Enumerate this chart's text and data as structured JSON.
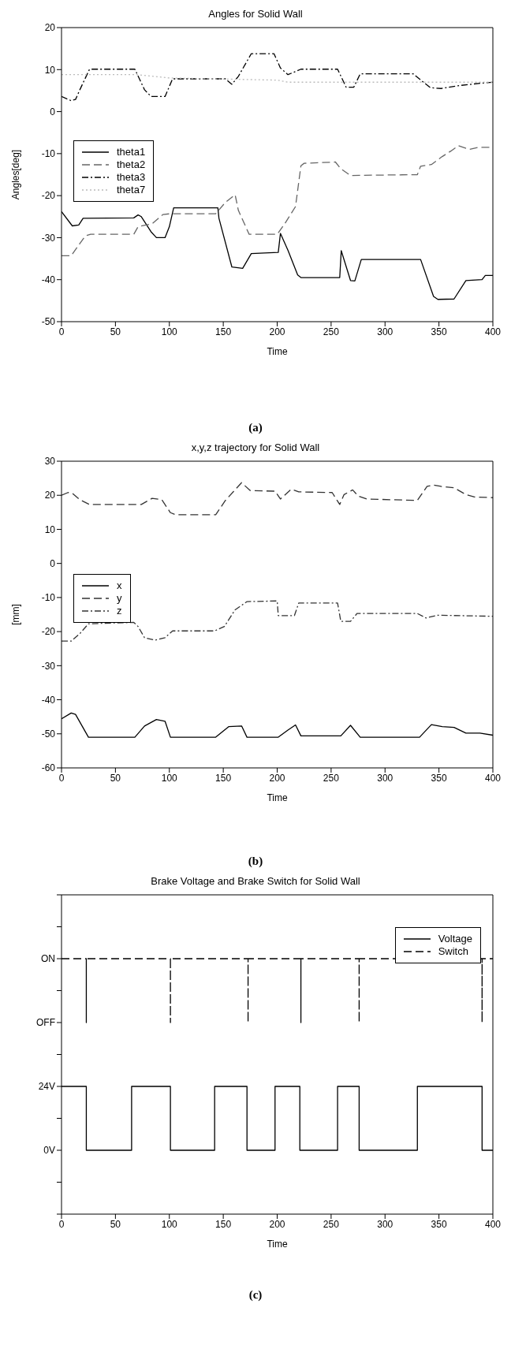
{
  "chart_data": [
    {
      "type": "line",
      "title": "Angles for Solid Wall",
      "xlabel": "Time",
      "ylabel": "Angles[deg]",
      "annotations": [
        "(a)"
      ],
      "xlim": [
        0,
        400
      ],
      "xticks": [
        0,
        50,
        100,
        150,
        200,
        250,
        300,
        350,
        400
      ],
      "ylim": [
        -50,
        20
      ],
      "yticks": [
        -50,
        -40,
        -30,
        -20,
        -10,
        0,
        10,
        20
      ],
      "legend": "left",
      "series": [
        {
          "name": "theta1",
          "color": "#000000",
          "line_style": "solid",
          "x": [
            0,
            10,
            16,
            20,
            67,
            71,
            74,
            83,
            88,
            96,
            100,
            104,
            145,
            146,
            158,
            168,
            176,
            201,
            203,
            210,
            219,
            222,
            258,
            259.4,
            268,
            272,
            278,
            333,
            345,
            349,
            364,
            375,
            390,
            393,
            400
          ],
          "values": [
            -23.8,
            -27.2,
            -27,
            -25.4,
            -25.3,
            -24.6,
            -25,
            -28.6,
            -30,
            -30,
            -27.4,
            -22.9,
            -22.9,
            -25.4,
            -37,
            -37.3,
            -33.8,
            -33.5,
            -29,
            -33,
            -38.9,
            -39.5,
            -39.5,
            -33.1,
            -40.2,
            -40.3,
            -35.2,
            -35.2,
            -44,
            -44.7,
            -44.6,
            -40.2,
            -40,
            -39,
            -39
          ]
        },
        {
          "name": "theta2",
          "color": "#666666",
          "line_style": "dashed",
          "x": [
            0,
            9,
            22,
            27,
            67,
            71,
            84,
            94,
            101,
            143,
            152,
            161,
            164,
            174,
            200,
            207,
            217,
            222,
            225,
            254,
            259,
            268,
            330,
            333,
            343,
            353,
            361,
            368,
            378,
            387,
            400
          ],
          "values": [
            -34.3,
            -34.3,
            -29.6,
            -29.2,
            -29.2,
            -27.4,
            -26.7,
            -24.5,
            -24.3,
            -24.3,
            -21.6,
            -19.8,
            -23.5,
            -29.2,
            -29.2,
            -26.7,
            -22.6,
            -12.9,
            -12.3,
            -12,
            -13.6,
            -15.2,
            -15,
            -13,
            -12.6,
            -10.7,
            -9.4,
            -8.1,
            -9,
            -8.5,
            -8.5
          ]
        },
        {
          "name": "theta3",
          "color": "#000000",
          "line_style": "dashdot",
          "x": [
            0,
            9,
            13,
            17,
            26,
            68,
            77,
            83,
            96,
            103,
            152,
            158,
            164,
            176,
            197,
            203,
            210,
            222,
            256,
            264,
            271,
            277,
            326,
            342,
            352,
            369,
            390,
            400
          ],
          "values": [
            3.6,
            2.6,
            2.9,
            5.2,
            10.1,
            10.1,
            5.2,
            3.6,
            3.6,
            7.8,
            7.8,
            6.5,
            8.4,
            13.8,
            13.8,
            10.4,
            8.8,
            10.1,
            10.1,
            5.8,
            5.8,
            9,
            9,
            5.7,
            5.5,
            6.2,
            6.8,
            7
          ]
        },
        {
          "name": "theta7",
          "color": "#bbbbbb",
          "line_style": "dotted",
          "x": [
            0,
            70,
            100,
            200,
            210,
            400
          ],
          "values": [
            8.8,
            8.8,
            8,
            7.5,
            7,
            7
          ]
        }
      ]
    },
    {
      "type": "line",
      "title": "x,y,z trajectory for Solid Wall",
      "xlabel": "Time",
      "ylabel": "[mm]",
      "annotations": [
        "(b)"
      ],
      "xlim": [
        0,
        400
      ],
      "xticks": [
        0,
        50,
        100,
        150,
        200,
        250,
        300,
        350,
        400
      ],
      "ylim": [
        -60,
        30
      ],
      "yticks": [
        -60,
        -50,
        -40,
        -30,
        -20,
        -10,
        0,
        10,
        20,
        30
      ],
      "legend": "left",
      "series": [
        {
          "name": "x",
          "color": "#000000",
          "line_style": "solid",
          "x": [
            0,
            9,
            13,
            25,
            68,
            77,
            88,
            96,
            101,
            143,
            155,
            167,
            172,
            201,
            210,
            217,
            222,
            259,
            268,
            277,
            332,
            343,
            353,
            364,
            375,
            388,
            400
          ],
          "values": [
            -45.6,
            -43.9,
            -44.3,
            -51,
            -51,
            -47.7,
            -45.8,
            -46.3,
            -51,
            -51,
            -47.9,
            -47.7,
            -51,
            -51,
            -48.9,
            -47.4,
            -50.6,
            -50.6,
            -47.5,
            -51,
            -51,
            -47.3,
            -47.9,
            -48.1,
            -49.8,
            -49.8,
            -50.4
          ]
        },
        {
          "name": "y",
          "color": "#333333",
          "line_style": "dashed",
          "x": [
            0,
            6,
            10,
            17,
            26,
            74,
            84,
            93,
            101,
            106,
            143,
            152,
            167,
            175,
            198,
            203,
            213,
            220,
            251,
            258,
            262,
            270,
            275,
            283,
            330,
            339,
            345,
            352,
            364,
            375,
            383,
            400
          ],
          "values": [
            20,
            20.8,
            20.6,
            18.7,
            17.3,
            17.3,
            19.1,
            18.7,
            14.9,
            14.3,
            14.3,
            18.5,
            23.7,
            21.4,
            21.2,
            18.9,
            21.8,
            21,
            20.8,
            17.3,
            20.2,
            21.6,
            19.8,
            18.9,
            18.5,
            22.6,
            23,
            22.6,
            22.2,
            20.2,
            19.5,
            19.3
          ]
        },
        {
          "name": "z",
          "color": "#333333",
          "line_style": "dashdot",
          "x": [
            0,
            9,
            17,
            25,
            67,
            71,
            77,
            87,
            96,
            103,
            142,
            151,
            161,
            172,
            200,
            201,
            216,
            220,
            256,
            259,
            268,
            274,
            330,
            338,
            349,
            400
          ],
          "values": [
            -22.8,
            -22.8,
            -20.6,
            -17.7,
            -17.3,
            -18.5,
            -21.8,
            -22.5,
            -21.8,
            -19.8,
            -19.8,
            -18.5,
            -13.6,
            -11.2,
            -11,
            -15.3,
            -15.3,
            -11.6,
            -11.6,
            -17,
            -17,
            -14.7,
            -14.7,
            -16,
            -15.2,
            -15.5
          ]
        }
      ]
    },
    {
      "type": "line",
      "title": "Brake Voltage and Brake Switch for Solid Wall",
      "xlabel": "Time",
      "annotations": [
        "(c)"
      ],
      "xlim": [
        0,
        400
      ],
      "xticks": [
        0,
        50,
        100,
        150,
        200,
        250,
        300,
        350,
        400
      ],
      "ylim": [
        -24,
        96
      ],
      "yticks": [
        {
          "value": -24,
          "label": null
        },
        {
          "value": -12,
          "label": null
        },
        {
          "value": 0,
          "label": "0V"
        },
        {
          "value": 12,
          "label": null
        },
        {
          "value": 24,
          "label": "24V"
        },
        {
          "value": 36,
          "label": null
        },
        {
          "value": 48,
          "label": "OFF"
        },
        {
          "value": 60,
          "label": null
        },
        {
          "value": 72,
          "label": "ON"
        },
        {
          "value": 84,
          "label": null
        },
        {
          "value": 96,
          "label": null
        }
      ],
      "legend": "top right",
      "series": [
        {
          "name": "Voltage",
          "type": "step",
          "color": "#000000",
          "line_style": "solid",
          "x": [
            0,
            23,
            65,
            101,
            142,
            172,
            198,
            221,
            256,
            276,
            330,
            390,
            400
          ],
          "values": [
            24,
            0,
            24,
            0,
            24,
            0,
            24,
            0,
            24,
            0,
            24,
            0,
            0
          ]
        },
        {
          "name": "Switch",
          "color": "#000000",
          "line_style": "dashed",
          "x": [
            0,
            23,
            23,
            23,
            101,
            101,
            101,
            173,
            173,
            173,
            222,
            222,
            222,
            276,
            276,
            276,
            390,
            390,
            390,
            400
          ],
          "values": [
            72,
            72,
            48,
            72,
            72,
            48,
            72,
            72,
            48,
            72,
            72,
            48,
            72,
            72,
            48,
            72,
            72,
            48,
            72,
            72
          ]
        }
      ]
    }
  ]
}
